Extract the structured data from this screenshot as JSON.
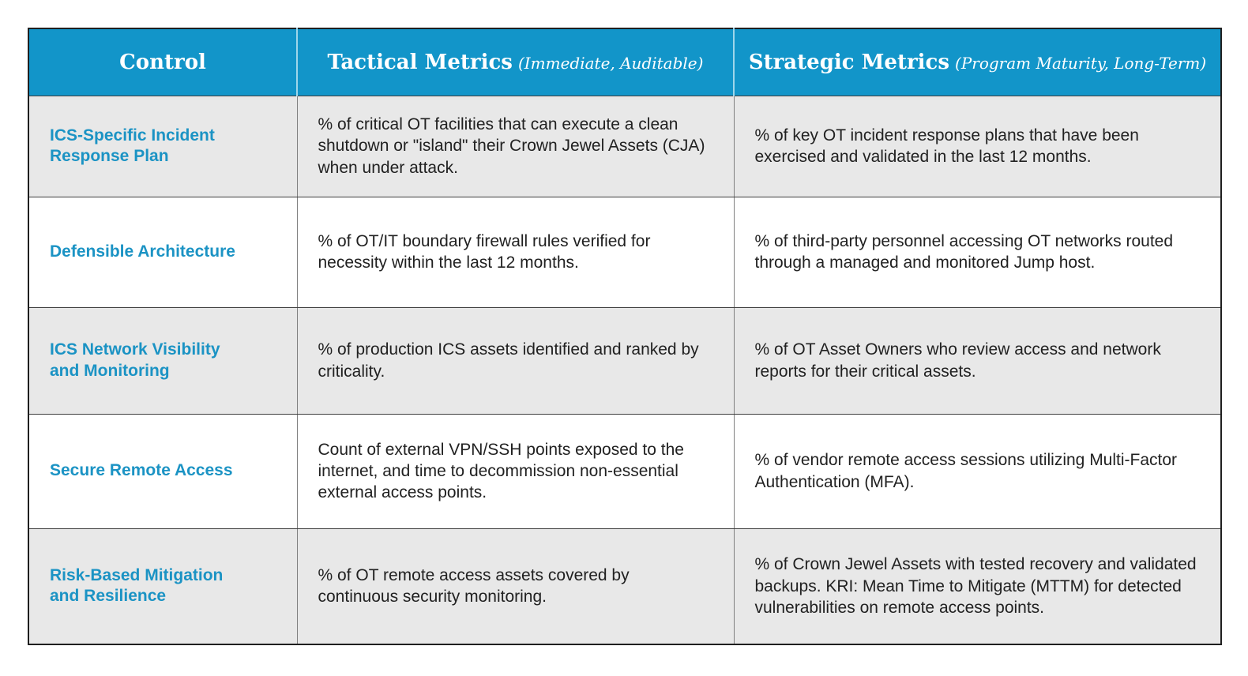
{
  "table": {
    "columns": [
      {
        "label": "Control",
        "sublabel": ""
      },
      {
        "label": "Tactical Metrics",
        "sublabel": "(Immediate, Auditable)"
      },
      {
        "label": "Strategic Metrics",
        "sublabel": "(Program Maturity, Long-Term)"
      }
    ],
    "rows": [
      {
        "control": "ICS-Specific Incident\nResponse Plan",
        "tactical": "% of critical OT facilities that can execute a clean shutdown or \"island\" their Crown Jewel Assets (CJA) when under attack.",
        "strategic": "% of key OT incident response plans that have been exercised and validated in the last 12 months."
      },
      {
        "control": "Defensible Architecture",
        "tactical": "% of OT/IT boundary firewall rules verified for necessity within the last 12 months.",
        "strategic": "% of third-party personnel accessing OT networks routed through a managed and monitored Jump host."
      },
      {
        "control": "ICS Network Visibility\nand Monitoring",
        "tactical": "% of production ICS assets identified and ranked by criticality.",
        "strategic": "% of OT Asset Owners who review access and network reports for their critical assets."
      },
      {
        "control": "Secure Remote Access",
        "tactical": "Count of external VPN/SSH points exposed to the internet, and time to decommission non-essential external access points.",
        "strategic": "% of vendor remote access sessions utilizing Multi-Factor Authentication (MFA)."
      },
      {
        "control": "Risk-Based Mitigation\nand Resilience",
        "tactical": "% of OT remote access assets covered by continuous security monitoring.",
        "strategic": "% of Crown Jewel Assets with tested recovery and validated backups. KRI: Mean Time to Mitigate (MTTM) for detected vulnerabilities on remote access points."
      }
    ]
  },
  "colors": {
    "header_bg": "#1295c9",
    "header_divider": "#9fd6ea",
    "control_text": "#1b93c4",
    "row_alt_bg": "#e8e8e8",
    "row_bg": "#ffffff",
    "body_text": "#212121",
    "column_divider": "#808080",
    "row_divider": "#3e3e3e",
    "outer_border": "#1f1f1f"
  }
}
